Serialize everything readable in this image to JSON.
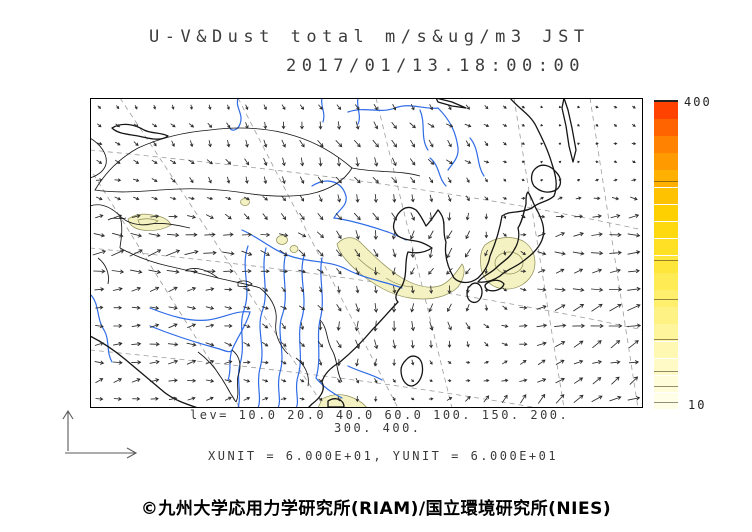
{
  "title": {
    "line1": "U-V&Dust total m/s&ug/m3 JST",
    "line2": "2017/01/13.18:00:00"
  },
  "legend": {
    "line1": "lev= 10.0 20.0 40.0 60.0 100. 150. 200.",
    "line2": "300. 400.",
    "units_line": "XUNIT = 6.000E+01, YUNIT = 6.000E+01"
  },
  "footer": {
    "copyright": "©九州大学応用力学研究所(RIAM)/国立環境研究所(NIES)"
  },
  "colorbar": {
    "min": 10,
    "max": 400,
    "min_label": "10",
    "max_label": "400",
    "tick_levels": [
      20,
      40,
      60,
      100,
      150,
      200,
      300
    ],
    "colors_bottom_to_top": [
      "#FFFFE8",
      "#FFFDDA",
      "#FFFAC6",
      "#FFF8B2",
      "#FFF59C",
      "#FFF285",
      "#FFEF6D",
      "#FFEB54",
      "#FFE63B",
      "#FFE024",
      "#FFD90F",
      "#FFD000",
      "#FFC200",
      "#FFB000",
      "#FF9B00",
      "#FF8200",
      "#FF6400",
      "#FF4200"
    ]
  },
  "chart_data": {
    "type": "heatmap",
    "title": "U-V&Dust total m/s&ug/m3 JST",
    "timestamp": "2017/01/13.18:00:00",
    "contour_levels": [
      10.0,
      20.0,
      40.0,
      60.0,
      100.0,
      150.0,
      200.0,
      300.0,
      400.0
    ],
    "colorbar_range": [
      10,
      400
    ],
    "x_unit": "6.000E+01",
    "y_unit": "6.000E+01",
    "region": "East Asia"
  },
  "map": {
    "coast_color": "#151515",
    "river_color": "#2E6BE6",
    "graticule_color": "#9d9d9d",
    "dust_fill": "#F4F1C2",
    "dust_outline": "#8d8d55",
    "frame_color": "#000000"
  },
  "wind_field": {
    "cols": 30,
    "rows": 17,
    "arrow_color": "#2b2b2b",
    "control_u": [
      [
        3,
        2,
        1,
        3,
        4,
        1,
        2
      ],
      [
        5,
        4,
        2,
        4,
        5,
        1,
        4
      ],
      [
        11,
        12,
        8,
        3,
        -7,
        10,
        13
      ],
      [
        7,
        8,
        4,
        0,
        1,
        9,
        11
      ],
      [
        8,
        9,
        6,
        1,
        5,
        8,
        9
      ]
    ],
    "control_v": [
      [
        3,
        4,
        5,
        5,
        3,
        1,
        2
      ],
      [
        1,
        4,
        7,
        8,
        5,
        -2,
        1
      ],
      [
        -1,
        -2,
        2,
        7,
        8,
        -1,
        -1
      ],
      [
        0,
        -1,
        4,
        9,
        7,
        -3,
        -4
      ],
      [
        -2,
        -2,
        -1,
        5,
        -5,
        -7,
        -5
      ]
    ]
  }
}
